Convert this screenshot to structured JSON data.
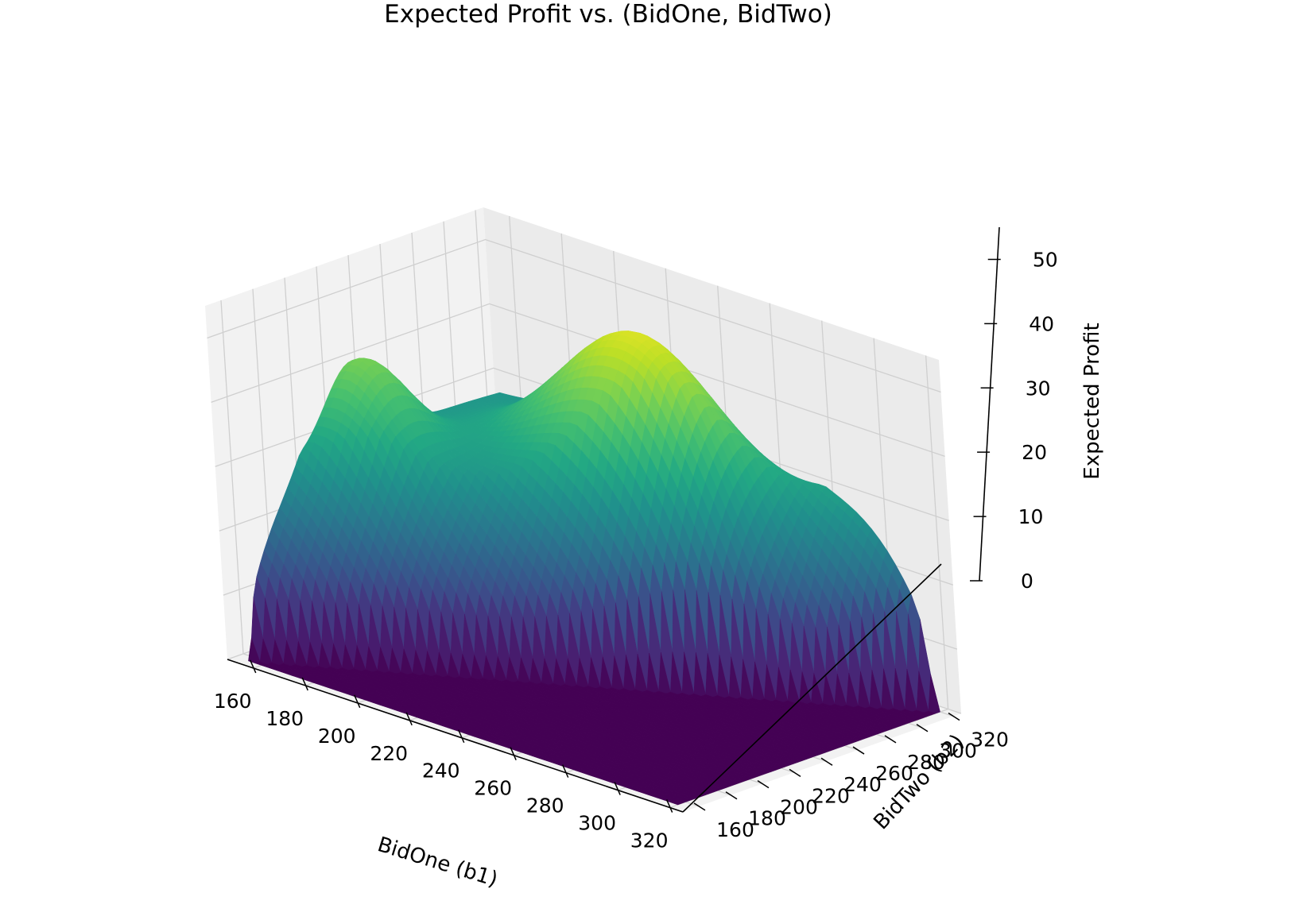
{
  "chart_data": {
    "type": "surface",
    "title": "Expected Profit vs. (BidOne, BidTwo)",
    "xlabel": "BidOne (b1)",
    "ylabel": "BidTwo (b2)",
    "zlabel": "Expected Profit",
    "xlim": [
      150,
      325
    ],
    "ylim": [
      150,
      325
    ],
    "zlim": [
      0,
      55
    ],
    "x_ticks": [
      "160",
      "180",
      "200",
      "220",
      "240",
      "260",
      "280",
      "300",
      "320"
    ],
    "y_ticks": [
      "160",
      "180",
      "200",
      "220",
      "240",
      "260",
      "280",
      "300",
      "320"
    ],
    "z_ticks": [
      "0",
      "10",
      "20",
      "30",
      "40",
      "50"
    ],
    "colormap": "viridis",
    "grid": true,
    "surface": {
      "x_range": [
        155,
        320
      ],
      "y_range": [
        155,
        320
      ],
      "grid_points": 60,
      "constraint": "profit is 0 where b2 <= b1",
      "peak": {
        "b1": 230,
        "b2": 290,
        "profit": 51
      },
      "secondary_ridge": {
        "b1": 160,
        "b2": 230,
        "profit": 41
      },
      "shoulder": {
        "b1": 300,
        "b2": 320,
        "profit": 30
      }
    }
  }
}
